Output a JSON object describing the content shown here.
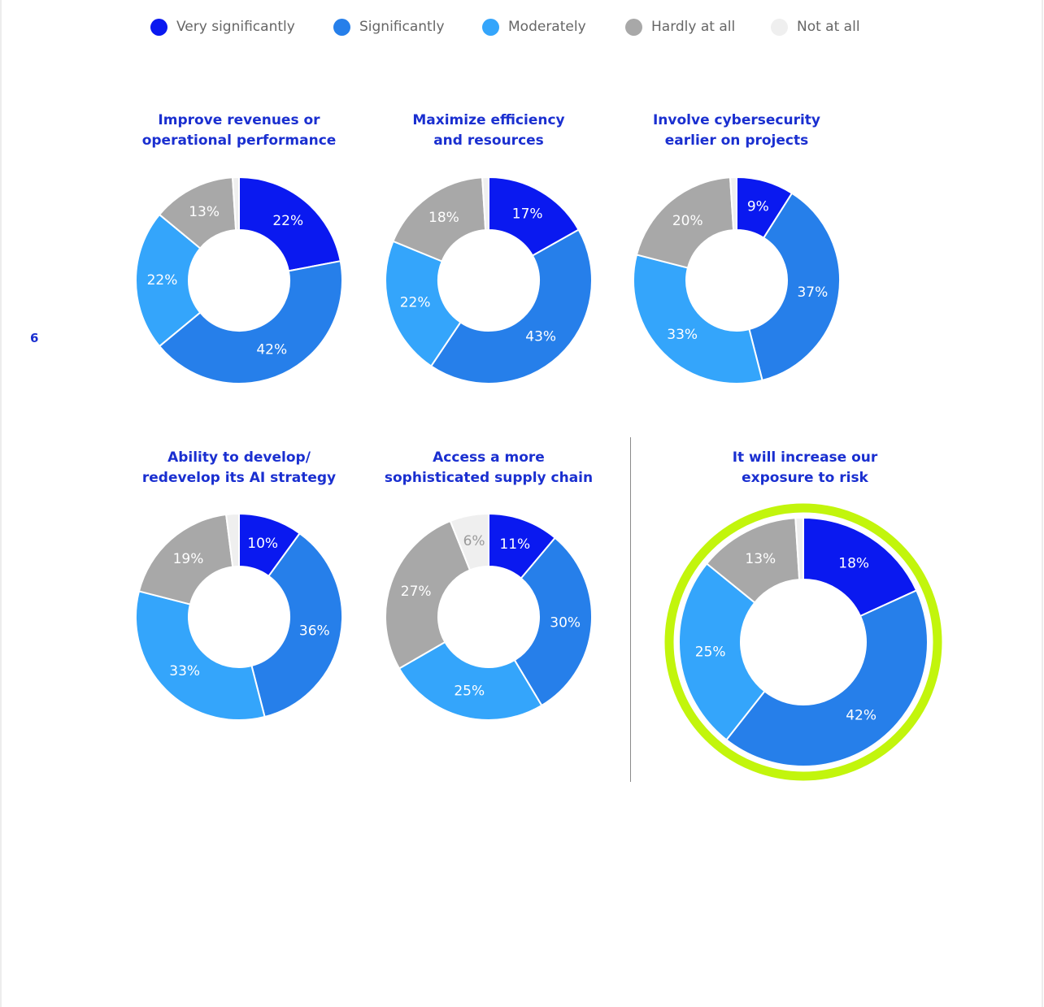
{
  "legend": [
    {
      "label": "Very significantly",
      "color": "#0a19f0"
    },
    {
      "label": "Significantly",
      "color": "#267fea"
    },
    {
      "label": "Moderately",
      "color": "#34a5fb"
    },
    {
      "label": "Hardly at all",
      "color": "#a8a8a8"
    },
    {
      "label": "Not at all",
      "color": "#efefef"
    }
  ],
  "page_number": "6",
  "chart_data": [
    {
      "type": "pie",
      "title": "Improve revenues or\noperational performance",
      "categories": [
        "Very significantly",
        "Significantly",
        "Moderately",
        "Hardly at all",
        "Not at all"
      ],
      "values": [
        22,
        42,
        22,
        13,
        1
      ],
      "labels": [
        "22%",
        "42%",
        "22%",
        "13%",
        ""
      ]
    },
    {
      "type": "pie",
      "title": "Maximize efficiency\nand resources",
      "categories": [
        "Very significantly",
        "Significantly",
        "Moderately",
        "Hardly at all",
        "Not at all"
      ],
      "values": [
        17,
        43,
        22,
        18,
        1
      ],
      "labels": [
        "17%",
        "43%",
        "22%",
        "18%",
        ""
      ]
    },
    {
      "type": "pie",
      "title": "Involve cybersecurity\nearlier on projects",
      "categories": [
        "Very significantly",
        "Significantly",
        "Moderately",
        "Hardly at all",
        "Not at all"
      ],
      "values": [
        9,
        37,
        33,
        20,
        1
      ],
      "labels": [
        "9%",
        "37%",
        "33%",
        "20%",
        ""
      ]
    },
    {
      "type": "pie",
      "title": "Ability to develop/\nredevelop its AI strategy",
      "categories": [
        "Very significantly",
        "Significantly",
        "Moderately",
        "Hardly at all",
        "Not at all"
      ],
      "values": [
        10,
        36,
        33,
        19,
        2
      ],
      "labels": [
        "10%",
        "36%",
        "33%",
        "19%",
        ""
      ]
    },
    {
      "type": "pie",
      "title": "Access a more\nsophisticated supply chain",
      "categories": [
        "Very significantly",
        "Significantly",
        "Moderately",
        "Hardly at all",
        "Not at all"
      ],
      "values": [
        11,
        30,
        25,
        27,
        6
      ],
      "labels": [
        "11%",
        "30%",
        "25%",
        "27%",
        "6%"
      ]
    },
    {
      "type": "pie",
      "title": "It will increase our\nexposure to risk",
      "categories": [
        "Very significantly",
        "Significantly",
        "Moderately",
        "Hardly at all",
        "Not at all"
      ],
      "values": [
        18,
        42,
        25,
        13,
        1
      ],
      "labels": [
        "18%",
        "42%",
        "25%",
        "13%",
        ""
      ],
      "highlight_color": "#c2f50c"
    }
  ]
}
